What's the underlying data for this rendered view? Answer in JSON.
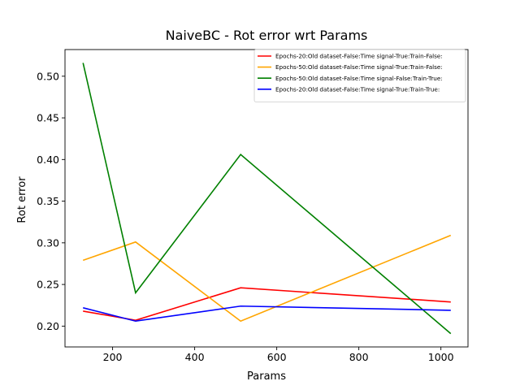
{
  "chart_data": {
    "type": "line",
    "title": "NaiveBC - Rot error wrt Params",
    "xlabel": "Params",
    "ylabel": "Rot error",
    "xlim": [
      84,
      1066
    ],
    "ylim": [
      0.175,
      0.532
    ],
    "xticks": [
      200,
      400,
      600,
      800,
      1000
    ],
    "yticks": [
      0.2,
      0.25,
      0.3,
      0.35,
      0.4,
      0.45,
      0.5
    ],
    "xtick_labels": [
      "200",
      "400",
      "600",
      "800",
      "1000"
    ],
    "ytick_labels": [
      "0.20",
      "0.25",
      "0.30",
      "0.35",
      "0.40",
      "0.45",
      "0.50"
    ],
    "grid": false,
    "legend_position": "top-right",
    "series": [
      {
        "name": "Epochs-20:Old dataset-False:Time signal-True:Train-False:",
        "color": "#ff0000",
        "x": [
          128,
          256,
          512,
          1024
        ],
        "y": [
          0.218,
          0.207,
          0.246,
          0.229
        ]
      },
      {
        "name": "Epochs-50:Old dataset-False:Time signal-True:Train-False:",
        "color": "#ffa500",
        "x": [
          128,
          256,
          512,
          1024
        ],
        "y": [
          0.279,
          0.301,
          0.206,
          0.309
        ]
      },
      {
        "name": "Epochs-50:Old dataset-False:Time signal-False:Train-True:",
        "color": "#008000",
        "x": [
          128,
          256,
          512,
          1024
        ],
        "y": [
          0.516,
          0.24,
          0.406,
          0.191
        ]
      },
      {
        "name": "Epochs-20:Old dataset-False:Time signal-True:Train-True:",
        "color": "#0000ff",
        "x": [
          128,
          256,
          512,
          1024
        ],
        "y": [
          0.222,
          0.206,
          0.224,
          0.219
        ]
      }
    ]
  }
}
